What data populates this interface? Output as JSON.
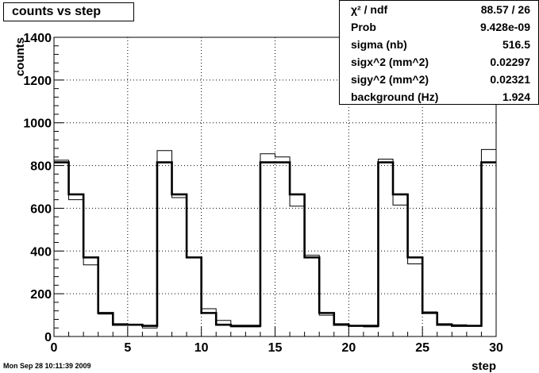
{
  "chart_data": {
    "type": "line",
    "title": "counts vs step",
    "xlabel": "step",
    "ylabel": "counts",
    "xlim": [
      0,
      30
    ],
    "ylim": [
      0,
      1400
    ],
    "x_ticks": [
      0,
      5,
      10,
      15,
      20,
      25,
      30
    ],
    "y_ticks": [
      0,
      200,
      400,
      600,
      800,
      1000,
      1200,
      1400
    ],
    "grid": true,
    "series": [
      {
        "style": "histogram-thin",
        "values": [
          825,
          640,
          335,
          105,
          60,
          55,
          40,
          870,
          650,
          370,
          130,
          75,
          45,
          45,
          855,
          840,
          610,
          380,
          100,
          60,
          50,
          45,
          830,
          615,
          340,
          115,
          60,
          55,
          50,
          875
        ]
      },
      {
        "style": "fit-thick",
        "values": [
          815,
          665,
          370,
          110,
          55,
          55,
          50,
          815,
          665,
          370,
          110,
          55,
          50,
          50,
          815,
          815,
          665,
          370,
          110,
          55,
          50,
          50,
          815,
          665,
          370,
          110,
          55,
          50,
          50,
          815
        ]
      }
    ]
  },
  "stats": [
    {
      "label": "χ² / ndf",
      "value": "88.57 / 26"
    },
    {
      "label": "Prob",
      "value": "9.428e-09"
    },
    {
      "label": "sigma (nb)",
      "value": "516.5"
    },
    {
      "label": "sigx^2 (mm^2)",
      "value": "0.02297"
    },
    {
      "label": "sigy^2 (mm^2)",
      "value": "0.02321"
    },
    {
      "label": "background (Hz)",
      "value": "1.924"
    }
  ],
  "footer": "Mon Sep 28 10:11:39 2009"
}
